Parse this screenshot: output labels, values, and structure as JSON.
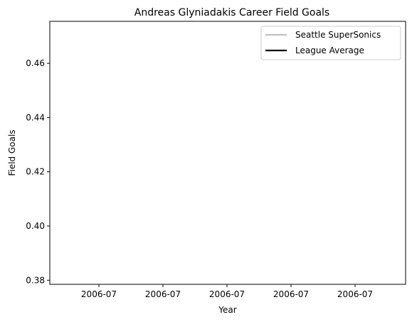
{
  "chart_data": {
    "type": "line",
    "title": "Andreas Glyniadakis Career Field Goals",
    "xlabel": "Year",
    "ylabel": "Field Goals",
    "x_tick_labels": [
      "2006-07",
      "2006-07",
      "2006-07",
      "2006-07",
      "2006-07"
    ],
    "ylim": [
      0.3785,
      0.4755
    ],
    "y_ticks": [
      0.38,
      0.4,
      0.42,
      0.44,
      0.46
    ],
    "y_tick_labels": [
      "0.38",
      "0.40",
      "0.42",
      "0.44",
      "0.46"
    ],
    "grid": false,
    "legend_position": "top-right",
    "series": [
      {
        "name": "Seattle SuperSonics",
        "color": "#c0c0c0",
        "values": []
      },
      {
        "name": "League Average",
        "color": "#000000",
        "values": []
      }
    ]
  }
}
